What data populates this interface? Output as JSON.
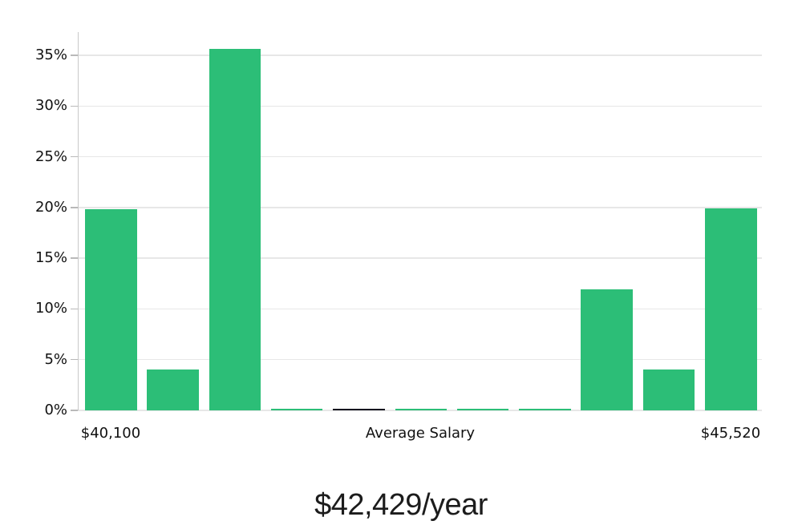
{
  "chart_data": {
    "type": "bar",
    "title": "$42,429/year",
    "x_axis_label": "Average Salary",
    "x_tick_labels": {
      "first": "$40,100",
      "last": "$45,520"
    },
    "y_tick_labels": [
      "0%",
      "5%",
      "10%",
      "15%",
      "20%",
      "25%",
      "30%",
      "35%"
    ],
    "y_ticks": [
      0,
      5,
      10,
      15,
      20,
      25,
      30,
      35
    ],
    "ylim": [
      0,
      37.3
    ],
    "ylabel": "",
    "xlabel": "Average Salary",
    "grid": "horizontal",
    "legend_position": "none",
    "values": [
      19.8,
      4.0,
      35.6,
      0.1,
      0.1,
      0.1,
      0.1,
      0.1,
      11.9,
      4.0,
      19.9
    ],
    "bar_roles": [
      "data",
      "data",
      "data",
      "data",
      "average-marker",
      "data",
      "data",
      "data",
      "data",
      "data",
      "data"
    ],
    "colors": {
      "bar_green": "#2cbe77",
      "bar_dark": "#15151f",
      "gridline": "#e7e7e7",
      "axis_line": "#c9c9c9",
      "tick": "#b9b9b9",
      "text": "#111111",
      "background": "#ffffff"
    }
  }
}
